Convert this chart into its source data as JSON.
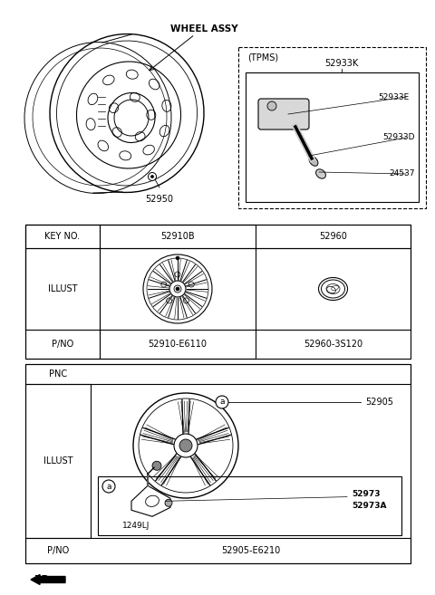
{
  "bg_color": "#ffffff",
  "title_text": "WHEEL ASSY",
  "tpms_label": "(TPMS)",
  "part_52933K": "52933K",
  "part_52933E": "52933E",
  "part_52933D": "52933D",
  "part_24537": "24537",
  "part_52950": "52950",
  "key_no": "KEY NO.",
  "col2_key": "52910B",
  "col3_key": "52960",
  "illust": "ILLUST",
  "pno": "P/NO",
  "pno1": "52910-E6110",
  "pno2": "52960-3S120",
  "pnc": "PNC",
  "part_52905": "52905",
  "part_1249LJ": "1249LJ",
  "part_52973": "52973",
  "part_52973A": "52973A",
  "pno_pnc": "52905-E6210",
  "fr_label": "FR.",
  "lc": "#000000"
}
